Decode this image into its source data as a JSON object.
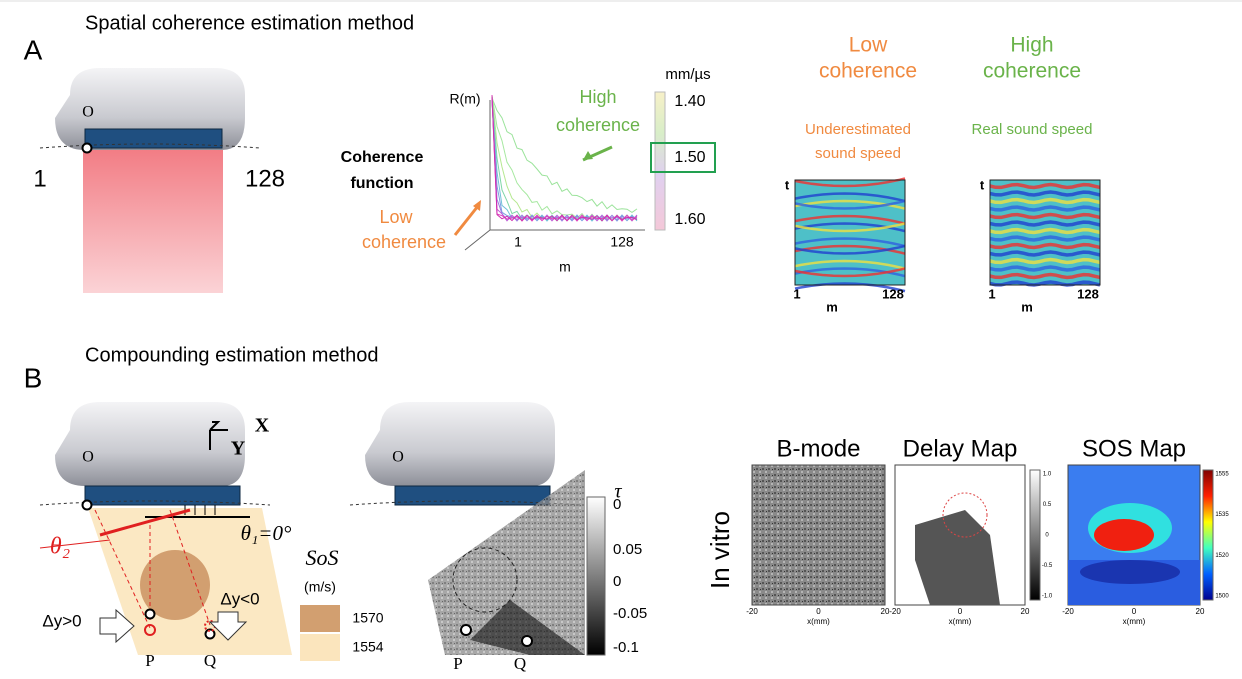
{
  "panel_a": {
    "letter": "A",
    "title": "Spatial coherence estimation method",
    "probe_origin": "O",
    "element_first": "1",
    "element_last": "128",
    "coherence_plot": {
      "y_label": "R(m)",
      "x_label": "m",
      "x_ticks": [
        "1",
        "128"
      ],
      "function_label": [
        "Coherence",
        "function"
      ],
      "high_label": [
        "High",
        "coherence"
      ],
      "low_label": [
        "Low",
        "coherence"
      ],
      "scale_unit": "mm/µs",
      "scale_ticks": [
        "1.40",
        "1.50",
        "1.60"
      ]
    },
    "maps": [
      {
        "heading": [
          "Low",
          "coherence"
        ],
        "caption": [
          "Underestimated",
          "sound speed"
        ],
        "y_label": "t",
        "x_label": "m",
        "x_ticks": [
          "1",
          "128"
        ]
      },
      {
        "heading": [
          "High",
          "coherence"
        ],
        "caption": [
          "Real sound speed"
        ],
        "y_label": "t",
        "x_label": "m",
        "x_ticks": [
          "1",
          "128"
        ]
      }
    ]
  },
  "panel_b": {
    "letter": "B",
    "title": "Compounding estimation method",
    "probe_origin": "O",
    "axis_x": "X",
    "axis_y": "Y",
    "theta2": "θ₂",
    "theta1": "θ₁=0°",
    "sos_label": "SoS",
    "sos_unit": "(m/s)",
    "sos_legend": [
      "1570",
      "1554"
    ],
    "dy_pos": "Δy>0",
    "dy_neg": "Δy<0",
    "points": [
      "P",
      "Q"
    ],
    "delay_panel": {
      "probe_origin": "O",
      "tau": "τ",
      "ticks": [
        "0",
        "0.05",
        "0",
        "-0.05",
        "-0.1"
      ],
      "points": [
        "P",
        "Q"
      ]
    },
    "in_vitro": {
      "row_label": "In vitro",
      "maps": [
        {
          "title": "B-mode",
          "x_ticks": [
            "-20",
            "0",
            "20"
          ],
          "x_label": "x(mm)"
        },
        {
          "title": "Delay Map",
          "x_ticks": [
            "-20",
            "0",
            "20"
          ],
          "x_label": "x(mm)",
          "colorbar": [
            "1.0",
            "0.5",
            "0",
            "-0.5",
            "-1.0"
          ]
        },
        {
          "title": "SOS Map",
          "x_ticks": [
            "-20",
            "0",
            "20"
          ],
          "x_label": "x(mm)",
          "colorbar": [
            "1555",
            "1535",
            "1520",
            "1500"
          ]
        }
      ]
    }
  }
}
